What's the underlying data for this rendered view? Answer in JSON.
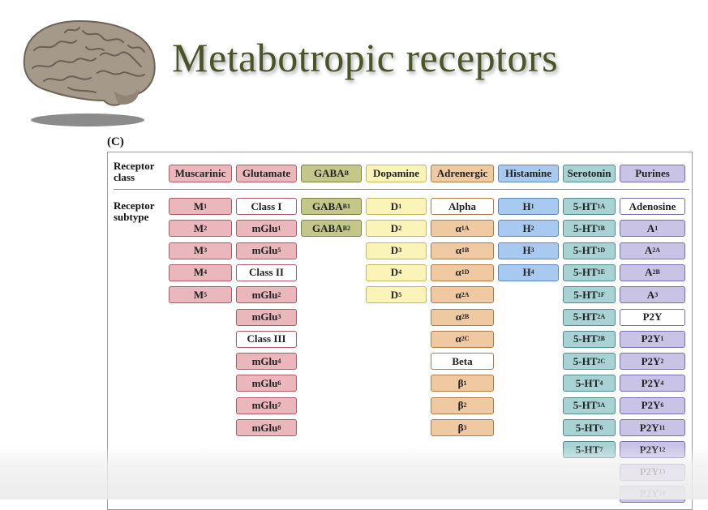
{
  "page": {
    "title": "Metabotropic receptors"
  },
  "figure": {
    "label": "(C)",
    "row_headers": {
      "class": "Receptor class",
      "subtype": "Receptor subtype"
    },
    "columns": [
      {
        "class": "Muscarinic",
        "fill": "#eab7bc",
        "edge": "#b05862",
        "subtypes": [
          [
            "M",
            "1"
          ],
          [
            "M",
            "2"
          ],
          [
            "M",
            "3"
          ],
          [
            "M",
            "4"
          ],
          [
            "M",
            "5"
          ]
        ],
        "whites": []
      },
      {
        "class": "Glutamate",
        "fill": "#eab7bc",
        "edge": "#b05862",
        "subtypes": [
          [
            "Class I",
            ""
          ],
          [
            "mGlu",
            "1"
          ],
          [
            "mGlu",
            "5"
          ],
          [
            "Class II",
            ""
          ],
          [
            "mGlu",
            "2"
          ],
          [
            "mGlu",
            "3"
          ],
          [
            "Class III",
            ""
          ],
          [
            "mGlu",
            "4"
          ],
          [
            "mGlu",
            "6"
          ],
          [
            "mGlu",
            "7"
          ],
          [
            "mGlu",
            "8"
          ]
        ],
        "whites": [
          0,
          3,
          6
        ]
      },
      {
        "class": "GABA",
        "class_sub": "B",
        "fill": "#c3c88a",
        "edge": "#7d8240",
        "subtypes": [
          [
            "GABA",
            "B1"
          ],
          [
            "GABA",
            "B2"
          ]
        ],
        "whites": []
      },
      {
        "class": "Dopamine",
        "fill": "#fbf4b9",
        "edge": "#c6b560",
        "subtypes": [
          [
            "D",
            "1"
          ],
          [
            "D",
            "2"
          ],
          [
            "D",
            "3"
          ],
          [
            "D",
            "4"
          ],
          [
            "D",
            "5"
          ]
        ],
        "whites": []
      },
      {
        "class": "Adrenergic",
        "fill": "#eec9a1",
        "edge": "#b07b43",
        "subtypes": [
          [
            "Alpha",
            ""
          ],
          [
            "α",
            "1A"
          ],
          [
            "α",
            "1B"
          ],
          [
            "α",
            "1D"
          ],
          [
            "α",
            "2A"
          ],
          [
            "α",
            "2B"
          ],
          [
            "α",
            "2C"
          ],
          [
            "Beta",
            ""
          ],
          [
            "β",
            "1"
          ],
          [
            "β",
            "2"
          ],
          [
            "β",
            "3"
          ]
        ],
        "whites": [
          0,
          7
        ]
      },
      {
        "class": "Histamine",
        "fill": "#a9caf0",
        "edge": "#5f86b5",
        "subtypes": [
          [
            "H",
            "1"
          ],
          [
            "H",
            "2"
          ],
          [
            "H",
            "3"
          ],
          [
            "H",
            "4"
          ]
        ],
        "whites": []
      },
      {
        "class": "Serotonin",
        "fill": "#a9d2d4",
        "edge": "#4f8b8f",
        "subtypes": [
          [
            "5-HT",
            "1A"
          ],
          [
            "5-HT",
            "1B"
          ],
          [
            "5-HT",
            "1D"
          ],
          [
            "5-HT",
            "1E"
          ],
          [
            "5-HT",
            "1F"
          ],
          [
            "5-HT",
            "2A"
          ],
          [
            "5-HT",
            "2B"
          ],
          [
            "5-HT",
            "2C"
          ],
          [
            "5-HT",
            "4"
          ],
          [
            "5-HT",
            "5A"
          ],
          [
            "5-HT",
            "6"
          ],
          [
            "5-HT",
            "7"
          ]
        ],
        "whites": []
      },
      {
        "class": "Purines",
        "fill": "#c9c3e6",
        "edge": "#7a6cb0",
        "subtypes": [
          [
            "Adenosine",
            ""
          ],
          [
            "A",
            "1"
          ],
          [
            "A",
            "2A"
          ],
          [
            "A",
            "2B"
          ],
          [
            "A",
            "3"
          ],
          [
            "P2Y",
            ""
          ],
          [
            "P2Y",
            "1"
          ],
          [
            "P2Y",
            "2"
          ],
          [
            "P2Y",
            "4"
          ],
          [
            "P2Y",
            "6"
          ],
          [
            "P2Y",
            "11"
          ],
          [
            "P2Y",
            "12"
          ],
          [
            "P2Y",
            "13"
          ],
          [
            "P2Y",
            "14"
          ]
        ],
        "whites": [
          0,
          5
        ]
      }
    ]
  }
}
